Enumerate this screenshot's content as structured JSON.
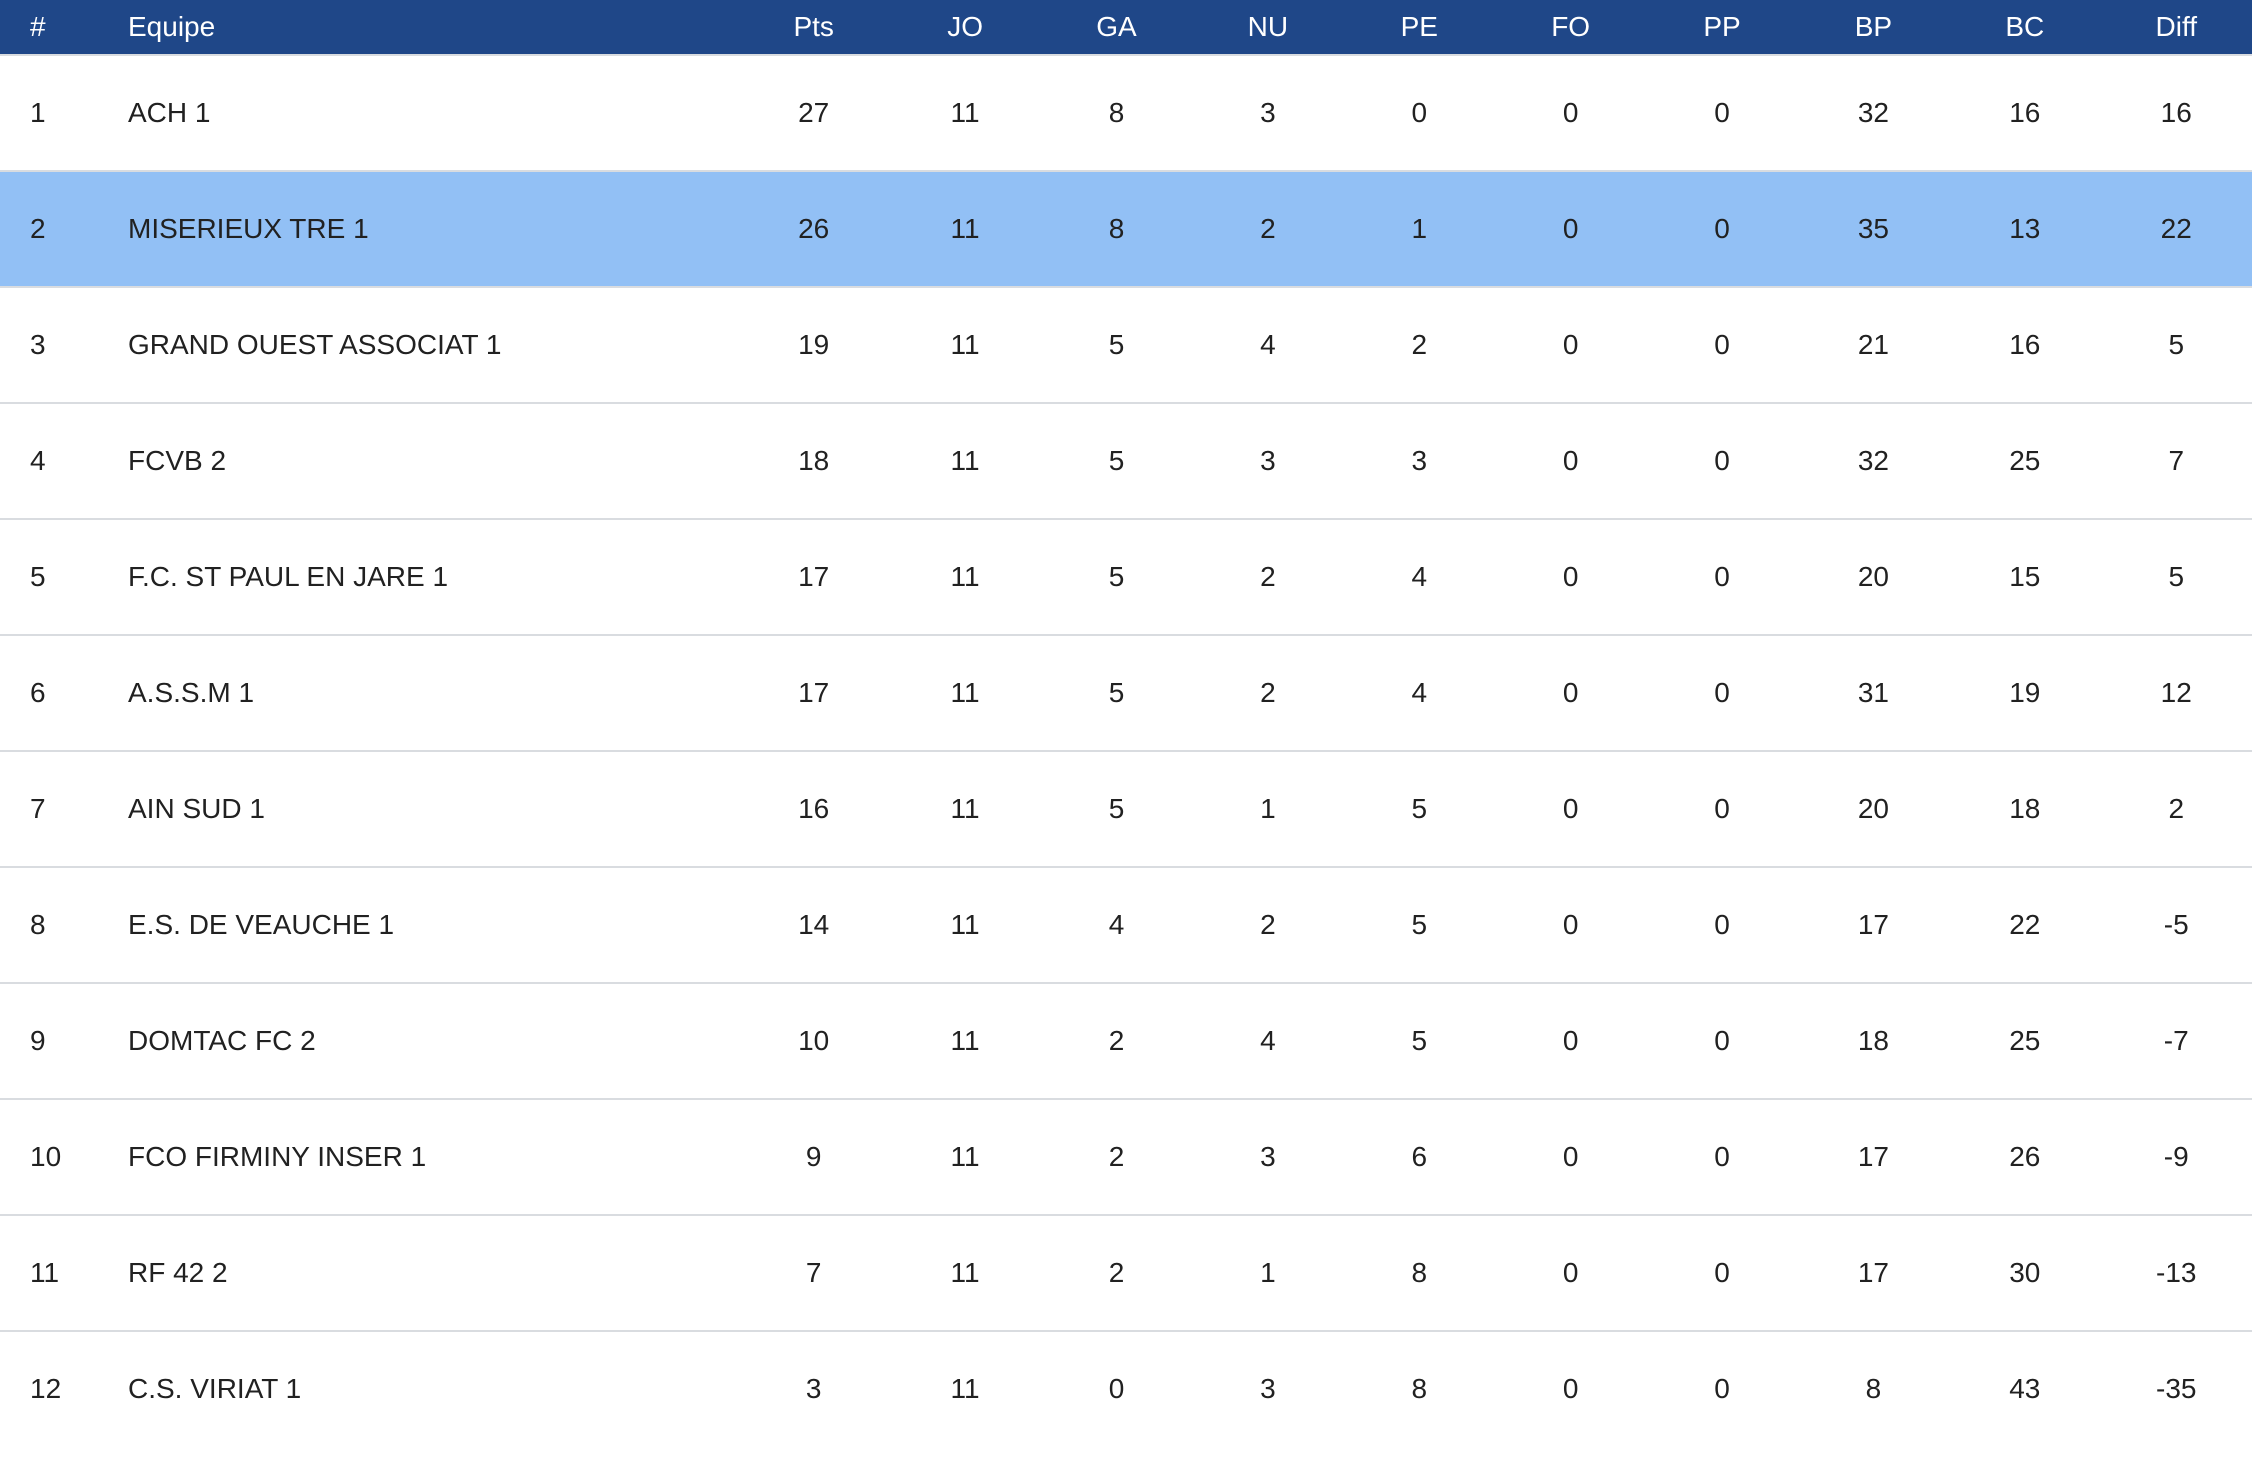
{
  "theme": {
    "header_bg": "#1f4788",
    "header_text": "#ffffff",
    "row_highlight_bg": "#92c0f5",
    "row_border": "#d9dce0",
    "body_text": "#212121",
    "row_bg": "#ffffff"
  },
  "table": {
    "columns": [
      {
        "key": "rank",
        "label": "#"
      },
      {
        "key": "team",
        "label": "Equipe"
      },
      {
        "key": "pts",
        "label": "Pts"
      },
      {
        "key": "jo",
        "label": "JO"
      },
      {
        "key": "ga",
        "label": "GA"
      },
      {
        "key": "nu",
        "label": "NU"
      },
      {
        "key": "pe",
        "label": "PE"
      },
      {
        "key": "fo",
        "label": "FO"
      },
      {
        "key": "pp",
        "label": "PP"
      },
      {
        "key": "bp",
        "label": "BP"
      },
      {
        "key": "bc",
        "label": "BC"
      },
      {
        "key": "diff",
        "label": "Diff"
      }
    ],
    "rows": [
      {
        "rank": "1",
        "team": "ACH 1",
        "pts": "27",
        "jo": "11",
        "ga": "8",
        "nu": "3",
        "pe": "0",
        "fo": "0",
        "pp": "0",
        "bp": "32",
        "bc": "16",
        "diff": "16",
        "highlighted": false
      },
      {
        "rank": "2",
        "team": "MISERIEUX TRE 1",
        "pts": "26",
        "jo": "11",
        "ga": "8",
        "nu": "2",
        "pe": "1",
        "fo": "0",
        "pp": "0",
        "bp": "35",
        "bc": "13",
        "diff": "22",
        "highlighted": true
      },
      {
        "rank": "3",
        "team": "GRAND OUEST ASSOCIAT 1",
        "pts": "19",
        "jo": "11",
        "ga": "5",
        "nu": "4",
        "pe": "2",
        "fo": "0",
        "pp": "0",
        "bp": "21",
        "bc": "16",
        "diff": "5",
        "highlighted": false
      },
      {
        "rank": "4",
        "team": "FCVB 2",
        "pts": "18",
        "jo": "11",
        "ga": "5",
        "nu": "3",
        "pe": "3",
        "fo": "0",
        "pp": "0",
        "bp": "32",
        "bc": "25",
        "diff": "7",
        "highlighted": false
      },
      {
        "rank": "5",
        "team": "F.C. ST PAUL EN JARE 1",
        "pts": "17",
        "jo": "11",
        "ga": "5",
        "nu": "2",
        "pe": "4",
        "fo": "0",
        "pp": "0",
        "bp": "20",
        "bc": "15",
        "diff": "5",
        "highlighted": false
      },
      {
        "rank": "6",
        "team": "A.S.S.M 1",
        "pts": "17",
        "jo": "11",
        "ga": "5",
        "nu": "2",
        "pe": "4",
        "fo": "0",
        "pp": "0",
        "bp": "31",
        "bc": "19",
        "diff": "12",
        "highlighted": false
      },
      {
        "rank": "7",
        "team": "AIN SUD 1",
        "pts": "16",
        "jo": "11",
        "ga": "5",
        "nu": "1",
        "pe": "5",
        "fo": "0",
        "pp": "0",
        "bp": "20",
        "bc": "18",
        "diff": "2",
        "highlighted": false
      },
      {
        "rank": "8",
        "team": "E.S. DE VEAUCHE 1",
        "pts": "14",
        "jo": "11",
        "ga": "4",
        "nu": "2",
        "pe": "5",
        "fo": "0",
        "pp": "0",
        "bp": "17",
        "bc": "22",
        "diff": "-5",
        "highlighted": false
      },
      {
        "rank": "9",
        "team": "DOMTAC FC 2",
        "pts": "10",
        "jo": "11",
        "ga": "2",
        "nu": "4",
        "pe": "5",
        "fo": "0",
        "pp": "0",
        "bp": "18",
        "bc": "25",
        "diff": "-7",
        "highlighted": false
      },
      {
        "rank": "10",
        "team": "FCO FIRMINY INSER 1",
        "pts": "9",
        "jo": "11",
        "ga": "2",
        "nu": "3",
        "pe": "6",
        "fo": "0",
        "pp": "0",
        "bp": "17",
        "bc": "26",
        "diff": "-9",
        "highlighted": false
      },
      {
        "rank": "11",
        "team": "RF 42 2",
        "pts": "7",
        "jo": "11",
        "ga": "2",
        "nu": "1",
        "pe": "8",
        "fo": "0",
        "pp": "0",
        "bp": "17",
        "bc": "30",
        "diff": "-13",
        "highlighted": false
      },
      {
        "rank": "12",
        "team": "C.S. VIRIAT 1",
        "pts": "3",
        "jo": "11",
        "ga": "0",
        "nu": "3",
        "pe": "8",
        "fo": "0",
        "pp": "0",
        "bp": "8",
        "bc": "43",
        "diff": "-35",
        "highlighted": false
      }
    ]
  }
}
